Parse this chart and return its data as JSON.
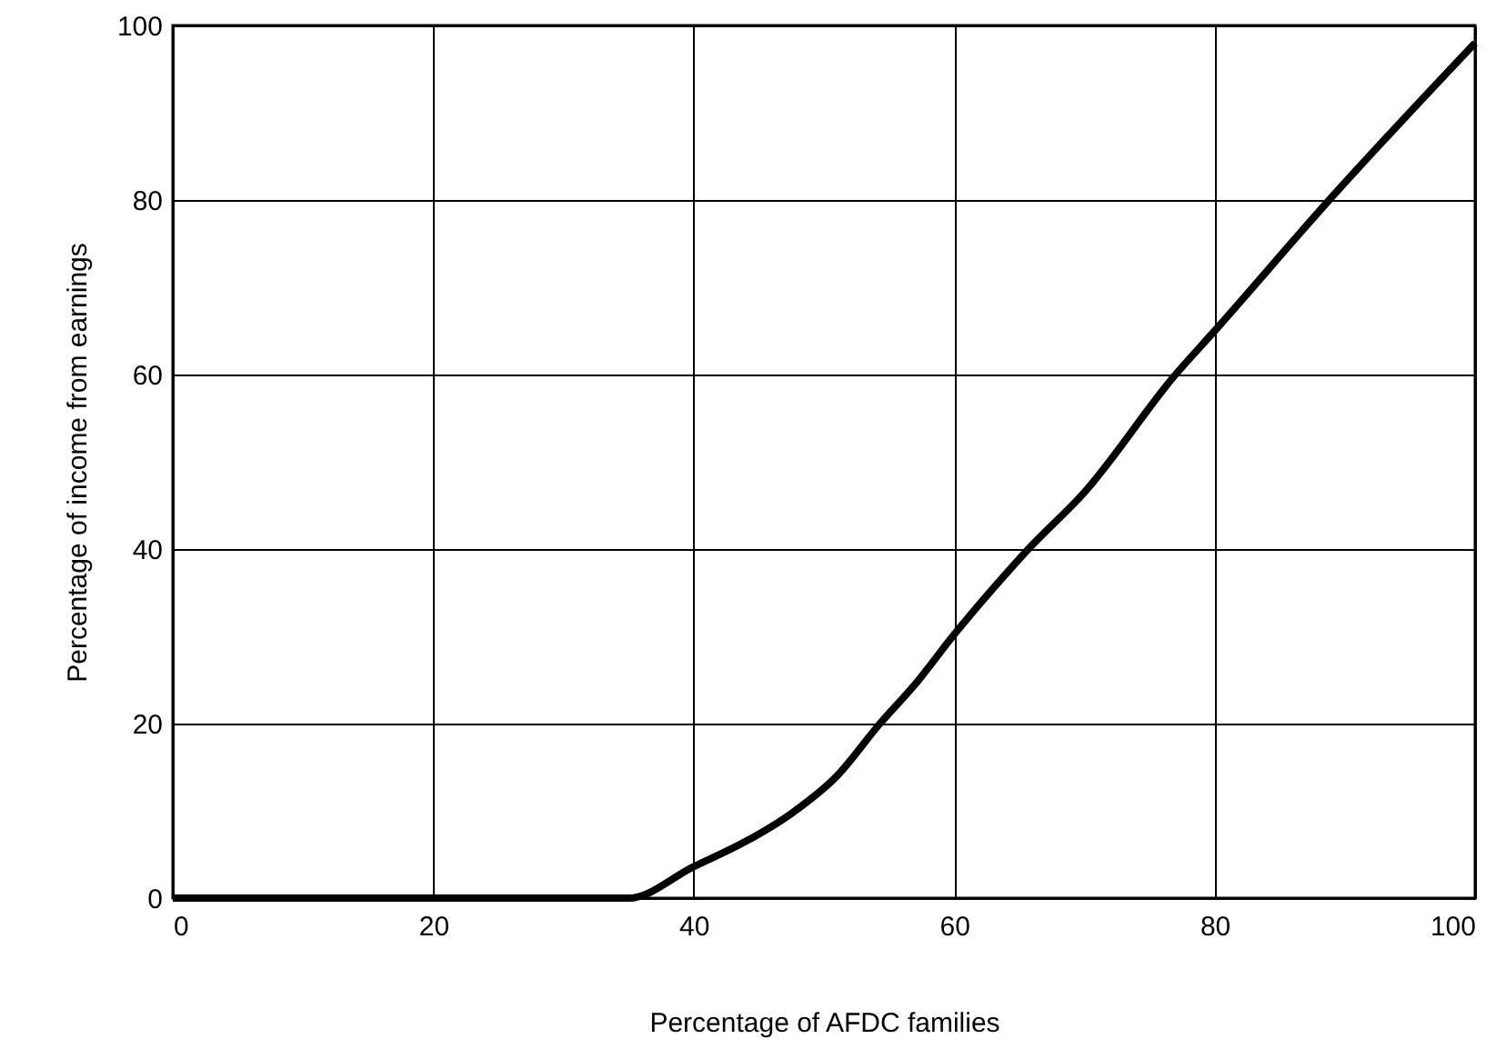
{
  "chart_data": {
    "type": "line",
    "xlabel": "Percentage of AFDC families",
    "ylabel": "Percentage of income from earnings",
    "x": [
      0,
      35,
      40,
      44,
      47.5,
      51,
      54.3,
      57,
      60,
      63,
      65.7,
      70,
      77,
      80,
      88.8,
      100
    ],
    "series": [
      {
        "color": "#000000",
        "values": [
          0,
          0,
          3.6,
          6.5,
          9.7,
          14,
          20,
          24.5,
          30.2,
          35.5,
          40,
          46.5,
          60,
          65,
          80,
          98
        ]
      }
    ],
    "xlim": [
      0,
      100
    ],
    "xticks": [
      0,
      20,
      40,
      60,
      80,
      100
    ],
    "ylim": [
      0,
      100
    ],
    "yticks": [
      0,
      20,
      40,
      60,
      80,
      100
    ],
    "grid": true
  }
}
